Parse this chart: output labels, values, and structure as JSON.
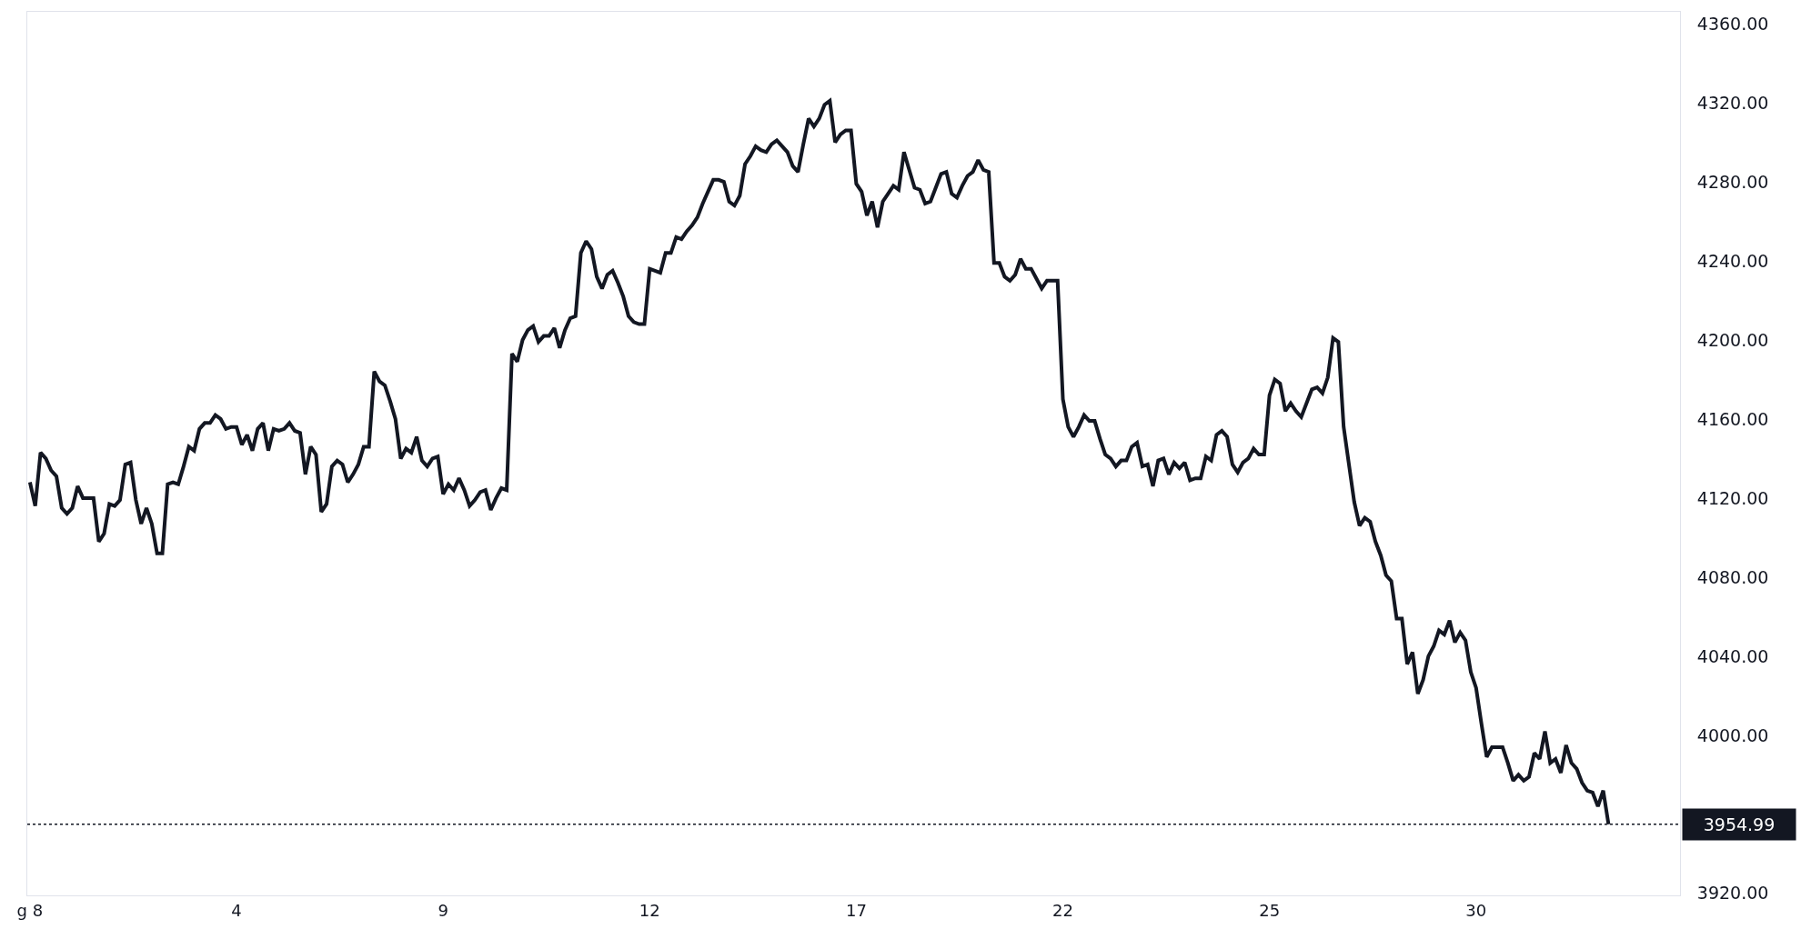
{
  "chart_data": {
    "type": "line",
    "categories": [
      "g 8",
      null,
      null,
      null,
      null,
      null,
      null,
      null,
      null,
      null,
      null,
      null,
      null,
      null,
      null,
      null,
      null,
      null,
      null,
      null,
      null,
      null,
      null,
      null,
      null,
      null,
      null,
      null,
      null,
      null,
      null,
      null,
      null,
      null,
      null,
      null,
      null,
      null,
      null,
      "4",
      null,
      null,
      null,
      null,
      null,
      null,
      null,
      null,
      null,
      null,
      null,
      null,
      null,
      null,
      null,
      null,
      null,
      null,
      null,
      null,
      null,
      null,
      null,
      null,
      null,
      null,
      null,
      null,
      null,
      null,
      null,
      null,
      null,
      null,
      null,
      null,
      null,
      null,
      "9",
      null,
      null,
      null,
      null,
      null,
      null,
      null,
      null,
      null,
      null,
      null,
      null,
      null,
      null,
      null,
      null,
      null,
      null,
      null,
      null,
      null,
      null,
      null,
      null,
      null,
      null,
      null,
      null,
      null,
      null,
      null,
      null,
      null,
      null,
      null,
      null,
      null,
      null,
      "12",
      null,
      null,
      null,
      null,
      null,
      null,
      null,
      null,
      null,
      null,
      null,
      null,
      null,
      null,
      null,
      null,
      null,
      null,
      null,
      null,
      null,
      null,
      null,
      null,
      null,
      null,
      null,
      null,
      null,
      null,
      null,
      null,
      null,
      null,
      null,
      null,
      null,
      null,
      "17",
      null,
      null,
      null,
      null,
      null,
      null,
      null,
      null,
      null,
      null,
      null,
      null,
      null,
      null,
      null,
      null,
      null,
      null,
      null,
      null,
      null,
      null,
      null,
      null,
      null,
      null,
      null,
      null,
      null,
      null,
      null,
      null,
      null,
      null,
      null,
      null,
      null,
      null,
      "22",
      null,
      null,
      null,
      null,
      null,
      null,
      null,
      null,
      null,
      null,
      null,
      null,
      null,
      null,
      null,
      null,
      null,
      null,
      null,
      null,
      null,
      null,
      null,
      null,
      null,
      null,
      null,
      null,
      null,
      null,
      null,
      null,
      null,
      null,
      null,
      null,
      null,
      null,
      "25",
      null,
      null,
      null,
      null,
      null,
      null,
      null,
      null,
      null,
      null,
      null,
      null,
      null,
      null,
      null,
      null,
      null,
      null,
      null,
      null,
      null,
      null,
      null,
      null,
      null,
      null,
      null,
      null,
      null,
      null,
      null,
      null,
      null,
      null,
      null,
      null,
      null,
      null,
      "30",
      null,
      null,
      null,
      null,
      null,
      null,
      null,
      null,
      null,
      null,
      null,
      null,
      null,
      null,
      null,
      null,
      null,
      null,
      null,
      null,
      null,
      null,
      null,
      null,
      null,
      null,
      null,
      null,
      null,
      null,
      null,
      null,
      null,
      null,
      null,
      null,
      null,
      null
    ],
    "series": [
      {
        "color": "#131722",
        "values": [
          4128,
          4116,
          4143,
          4140,
          4134,
          4131,
          4115,
          4112,
          4115,
          4126,
          4120,
          4120,
          4120,
          4098,
          4102,
          4117,
          4116,
          4119,
          4137,
          4138,
          4119,
          4107,
          4115,
          4107,
          4092,
          4092,
          4127,
          4128,
          4127,
          4136,
          4146,
          4144,
          4155,
          4158,
          4158,
          4162,
          4160,
          4155,
          4156,
          4156,
          4147,
          4152,
          4144,
          4155,
          4158,
          4144,
          4155,
          4154,
          4155,
          4158,
          4154,
          4153,
          4132,
          4146,
          4142,
          4113,
          4117,
          4136,
          4139,
          4137,
          4128,
          4132,
          4137,
          4146,
          4146,
          4184,
          4179,
          4177,
          4169,
          4160,
          4140,
          4145,
          4143,
          4151,
          4139,
          4136,
          4140,
          4141,
          4122,
          4127,
          4124,
          4130,
          4124,
          4116,
          4119,
          4123,
          4124,
          4114,
          4120,
          4125,
          4124,
          4193,
          4189,
          4200,
          4205,
          4207,
          4199,
          4202,
          4202,
          4206,
          4196,
          4205,
          4211,
          4212,
          4244,
          4250,
          4246,
          4232,
          4226,
          4233,
          4235,
          4229,
          4222,
          4212,
          4209,
          4208,
          4208,
          4236,
          4235,
          4234,
          4244,
          4244,
          4252,
          4251,
          4255,
          4258,
          4262,
          4269,
          4275,
          4281,
          4281,
          4280,
          4270,
          4268,
          4273,
          4289,
          4293,
          4298,
          4296,
          4295,
          4299,
          4301,
          4298,
          4295,
          4288,
          4285,
          4299,
          4312,
          4308,
          4312,
          4319,
          4321,
          4300,
          4304,
          4306,
          4306,
          4279,
          4275,
          4263,
          4270,
          4257,
          4270,
          4274,
          4278,
          4276,
          4295,
          4286,
          4277,
          4276,
          4269,
          4270,
          4277,
          4284,
          4285,
          4274,
          4272,
          4278,
          4283,
          4285,
          4291,
          4286,
          4285,
          4239,
          4239,
          4232,
          4230,
          4233,
          4241,
          4236,
          4236,
          4231,
          4226,
          4230,
          4230,
          4230,
          4170,
          4156,
          4151,
          4156,
          4162,
          4159,
          4159,
          4150,
          4142,
          4140,
          4136,
          4139,
          4139,
          4146,
          4148,
          4136,
          4137,
          4126,
          4139,
          4140,
          4132,
          4138,
          4135,
          4138,
          4129,
          4130,
          4130,
          4141,
          4139,
          4152,
          4154,
          4151,
          4137,
          4133,
          4138,
          4140,
          4145,
          4142,
          4142,
          4172,
          4180,
          4178,
          4164,
          4168,
          4164,
          4161,
          4168,
          4175,
          4176,
          4173,
          4181,
          4201,
          4199,
          4156,
          4137,
          4118,
          4106,
          4110,
          4108,
          4098,
          4091,
          4081,
          4078,
          4059,
          4059,
          4036,
          4042,
          4021,
          4028,
          4040,
          4045,
          4053,
          4051,
          4058,
          4047,
          4052,
          4048,
          4032,
          4024,
          4006,
          3989,
          3994,
          3994,
          3994,
          3986,
          3977,
          3980,
          3977,
          3979,
          3991,
          3988,
          4002,
          3986,
          3988,
          3981,
          3995,
          3986,
          3983,
          3976,
          3972,
          3971,
          3964,
          3972,
          3955,
          null,
          null,
          null,
          null,
          null,
          null,
          null,
          null,
          null,
          null,
          null,
          null,
          null
        ]
      }
    ],
    "ylim": [
      3919,
      4366
    ],
    "yticks": [
      {
        "value": 3920,
        "label": "3920.00"
      },
      {
        "value": 4000,
        "label": "4000.00"
      },
      {
        "value": 4040,
        "label": "4040.00"
      },
      {
        "value": 4080,
        "label": "4080.00"
      },
      {
        "value": 4120,
        "label": "4120.00"
      },
      {
        "value": 4160,
        "label": "4160.00"
      },
      {
        "value": 4200,
        "label": "4200.00"
      },
      {
        "value": 4240,
        "label": "4240.00"
      },
      {
        "value": 4280,
        "label": "4280.00"
      },
      {
        "value": 4320,
        "label": "4320.00"
      },
      {
        "value": 4360,
        "label": "4360.00"
      }
    ],
    "ref_lines": [
      {
        "axis": "y",
        "value": 3954.99,
        "label": "3954.99",
        "color": "#131722",
        "line_style": "dotted"
      }
    ],
    "grid": false,
    "marker": "none",
    "line_style": "solid"
  }
}
